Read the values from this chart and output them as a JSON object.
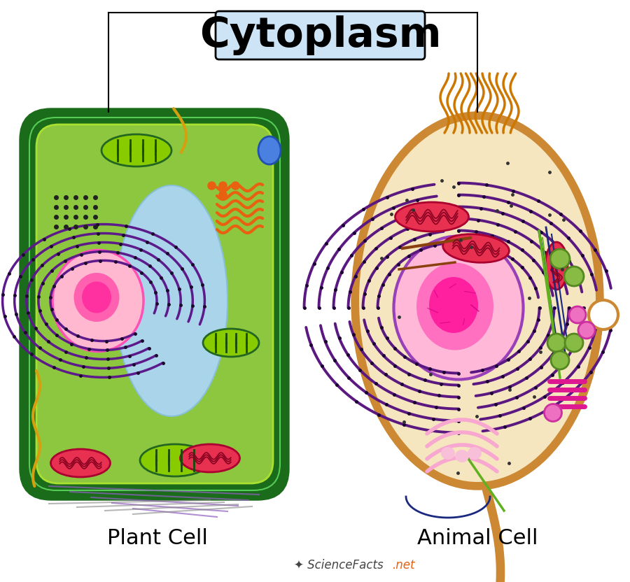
{
  "title": "Cytoplasm",
  "title_bg": "#cce4f5",
  "title_fontsize": 42,
  "plant_label": "Plant Cell",
  "animal_label": "Animal Cell",
  "label_fontsize": 22,
  "bg_color": "#ffffff",
  "plant_cell": {
    "outer_color": "#1a6b1a",
    "inner_color": "#8dc63f",
    "vacuole_color": "#aad4ea",
    "nucleus_color": "#ffb8d0",
    "nucleus_core_color": "#ff50a0"
  },
  "animal_cell": {
    "outer_color": "#cc8833",
    "inner_color": "#f5e6c0",
    "nucleus_color": "#ff80c8",
    "nucleus_core_color": "#ff20a0"
  }
}
